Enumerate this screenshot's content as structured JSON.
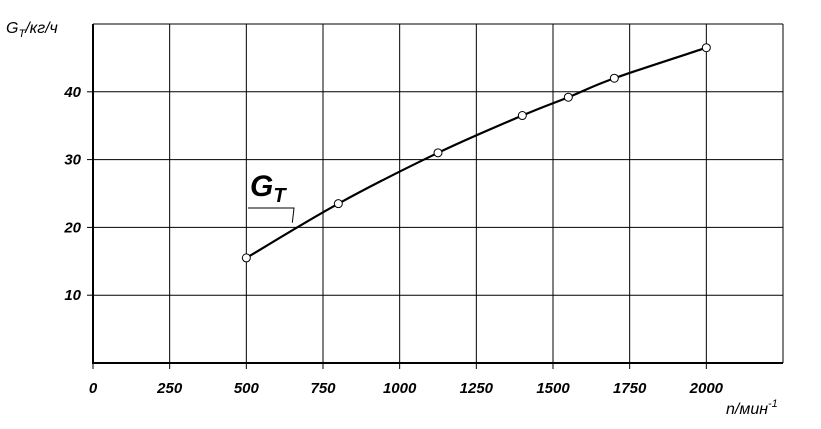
{
  "chart_data": {
    "type": "line",
    "title": "",
    "xlabel": "n/мин",
    "xlabel_sup": "-1",
    "ylabel_main": "G",
    "ylabel_sub": "T",
    "ylabel_rest": "/кг/ч",
    "xlim": [
      0,
      2250
    ],
    "ylim": [
      0,
      50
    ],
    "x_ticks": [
      0,
      250,
      500,
      750,
      1000,
      1250,
      1500,
      1750,
      2000
    ],
    "y_ticks": [
      10,
      20,
      30,
      40
    ],
    "grid": true,
    "series": [
      {
        "label_main": "G",
        "label_sub": "T",
        "x": [
          500,
          800,
          1125,
          1400,
          1550,
          1700,
          2000
        ],
        "y": [
          15.5,
          23.5,
          31.0,
          36.5,
          39.2,
          42.0,
          46.5
        ]
      }
    ]
  }
}
